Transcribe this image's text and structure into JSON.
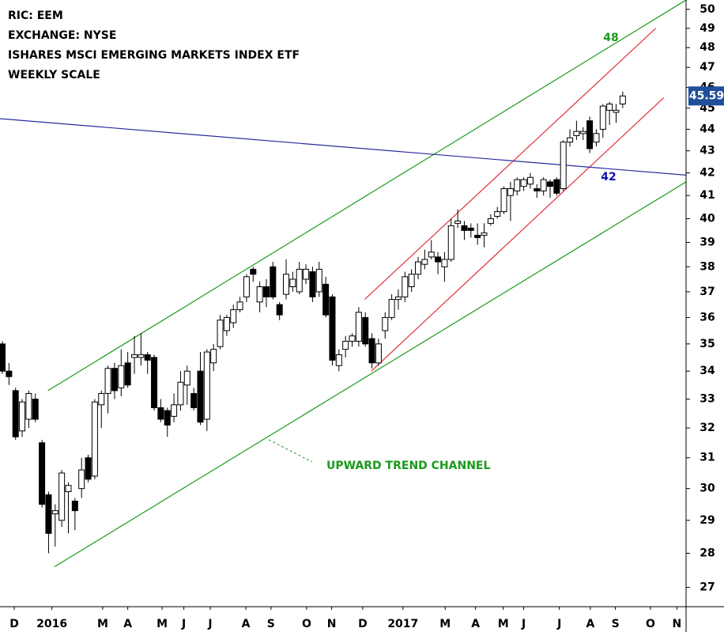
{
  "chart_data": {
    "type": "candlestick",
    "title_lines": [
      "RIC: EEM",
      "EXCHANGE: NYSE",
      "ISHARES MSCI EMERGING MARKETS INDEX ETF",
      "WEEKLY SCALE"
    ],
    "open": [
      35.0,
      34.0,
      33.3,
      31.9,
      32.3,
      33.0,
      31.5,
      29.8,
      29.2,
      29.0,
      29.9,
      29.6,
      30.0,
      31.0,
      30.4,
      32.8,
      33.2,
      34.1,
      33.4,
      34.3,
      34.5,
      34.5,
      34.6,
      34.5,
      32.7,
      32.6,
      32.4,
      32.8,
      33.5,
      33.2,
      34.0,
      32.3,
      34.3,
      34.9,
      35.5,
      35.8,
      36.3,
      36.8,
      37.9,
      36.6,
      37.2,
      38.0,
      36.5,
      36.9,
      37.2,
      37.0,
      37.5,
      37.8,
      37.0,
      37.3,
      36.8,
      34.2,
      34.8,
      35.1,
      35.1,
      36.0,
      35.2,
      34.3,
      35.5,
      36.0,
      36.7,
      36.8,
      37.2,
      37.7,
      38.1,
      38.4,
      38.4,
      38.0,
      38.3,
      39.8,
      39.7,
      39.6,
      39.3,
      39.3,
      39.8,
      40.1,
      40.3,
      41.0,
      41.2,
      41.4,
      41.5,
      41.3,
      41.2,
      41.6,
      41.7,
      41.3,
      43.4,
      43.7,
      43.8,
      44.4,
      43.4,
      44.0,
      44.9,
      44.8,
      45.2
    ],
    "high": [
      35.1,
      34.3,
      33.4,
      33.0,
      33.3,
      33.2,
      31.6,
      29.9,
      29.5,
      30.6,
      30.2,
      29.7,
      31.0,
      31.1,
      33.0,
      33.3,
      34.2,
      34.3,
      34.8,
      34.7,
      35.3,
      35.4,
      34.7,
      34.6,
      33.0,
      32.7,
      33.2,
      34.0,
      34.2,
      33.4,
      34.7,
      34.8,
      35.0,
      36.1,
      36.1,
      36.5,
      36.8,
      37.7,
      38.0,
      37.4,
      37.5,
      38.2,
      36.6,
      38.3,
      37.8,
      38.2,
      38.1,
      38.0,
      38.2,
      37.6,
      36.9,
      34.8,
      35.3,
      35.4,
      36.4,
      36.2,
      35.4,
      35.2,
      36.2,
      36.9,
      37.1,
      37.8,
      37.9,
      38.4,
      38.7,
      39.1,
      38.6,
      38.6,
      40.0,
      40.4,
      39.9,
      39.8,
      39.8,
      39.8,
      40.2,
      40.5,
      41.4,
      41.6,
      41.8,
      41.8,
      42.0,
      41.5,
      41.8,
      41.7,
      41.8,
      43.5,
      44.0,
      44.4,
      44.1,
      44.6,
      44.0,
      45.2,
      45.3,
      45.2,
      45.8
    ],
    "low": [
      33.9,
      33.5,
      31.6,
      31.7,
      32.0,
      32.2,
      29.4,
      28.0,
      28.2,
      28.8,
      28.6,
      28.7,
      29.7,
      30.2,
      30.3,
      32.0,
      32.5,
      33.0,
      33.1,
      33.4,
      33.9,
      34.2,
      33.9,
      32.6,
      32.2,
      31.7,
      32.2,
      32.6,
      32.8,
      32.6,
      32.1,
      31.9,
      34.0,
      34.8,
      35.3,
      35.6,
      36.2,
      36.6,
      37.4,
      36.2,
      36.4,
      36.7,
      35.9,
      36.7,
      37.0,
      36.9,
      37.3,
      36.6,
      36.8,
      36.0,
      34.2,
      34.0,
      34.5,
      34.9,
      34.9,
      34.9,
      34.1,
      34.2,
      35.2,
      35.9,
      36.3,
      36.6,
      37.0,
      37.5,
      37.9,
      38.3,
      37.7,
      37.4,
      38.2,
      39.6,
      39.1,
      39.2,
      38.9,
      38.8,
      39.7,
      40.0,
      40.2,
      39.9,
      41.0,
      41.2,
      41.3,
      40.9,
      41.0,
      40.9,
      41.0,
      41.2,
      43.2,
      43.5,
      43.5,
      42.9,
      43.2,
      43.6,
      44.2,
      44.3,
      45.0
    ],
    "close": [
      34.0,
      33.8,
      31.7,
      32.9,
      33.2,
      32.3,
      29.5,
      28.6,
      29.3,
      30.5,
      30.1,
      29.3,
      30.6,
      30.3,
      32.9,
      33.2,
      34.1,
      33.3,
      34.2,
      33.5,
      34.6,
      34.6,
      34.4,
      32.7,
      32.3,
      32.1,
      32.8,
      33.6,
      34.0,
      32.7,
      32.2,
      34.7,
      34.8,
      35.9,
      36.0,
      36.3,
      36.6,
      37.6,
      37.7,
      37.2,
      36.8,
      36.8,
      36.1,
      37.7,
      37.5,
      37.9,
      37.9,
      36.8,
      37.9,
      36.1,
      34.4,
      34.6,
      35.1,
      35.3,
      36.2,
      35.0,
      34.3,
      35.0,
      36.0,
      36.7,
      36.8,
      37.6,
      37.7,
      38.2,
      38.3,
      38.6,
      38.2,
      38.3,
      39.7,
      39.9,
      39.5,
      39.5,
      39.2,
      39.4,
      40.0,
      40.3,
      41.3,
      41.3,
      41.7,
      41.7,
      41.8,
      41.2,
      41.7,
      41.4,
      41.1,
      43.4,
      43.6,
      43.9,
      43.9,
      43.1,
      43.8,
      45.1,
      45.2,
      44.9,
      45.59
    ],
    "last_price": 45.59,
    "log_scale": true,
    "ylim": [
      26.45,
      50.5
    ],
    "yticks": [
      27,
      28,
      29,
      30,
      31,
      32,
      33,
      34,
      35,
      36,
      37,
      38,
      39,
      40,
      41,
      42,
      43,
      44,
      45,
      46,
      47,
      48,
      49,
      50
    ],
    "xlim": [
      -0.36,
      103.6
    ],
    "xticks": [
      {
        "value": 1.8,
        "label": "D"
      },
      {
        "value": 7.5,
        "label": "2016"
      },
      {
        "value": 15.2,
        "label": "M"
      },
      {
        "value": 19.0,
        "label": "A"
      },
      {
        "value": 24.2,
        "label": "M"
      },
      {
        "value": 27.5,
        "label": "J"
      },
      {
        "value": 31.5,
        "label": "J"
      },
      {
        "value": 36.9,
        "label": "A"
      },
      {
        "value": 40.7,
        "label": "S"
      },
      {
        "value": 46.1,
        "label": "O"
      },
      {
        "value": 49.9,
        "label": "N"
      },
      {
        "value": 54.6,
        "label": "D"
      },
      {
        "value": 60.7,
        "label": "2017"
      },
      {
        "value": 67.1,
        "label": "M"
      },
      {
        "value": 71.7,
        "label": "A"
      },
      {
        "value": 75.9,
        "label": "M"
      },
      {
        "value": 79.0,
        "label": "J"
      },
      {
        "value": 84.4,
        "label": "J"
      },
      {
        "value": 89.1,
        "label": "A"
      },
      {
        "value": 92.9,
        "label": "S"
      },
      {
        "value": 98.2,
        "label": "O"
      },
      {
        "value": 102.2,
        "label": "N"
      }
    ],
    "trend_lines": [
      {
        "color": "#1a9a1a",
        "points": [
          [
            6.9,
            33.3
          ],
          [
            103.6,
            50.5
          ]
        ]
      },
      {
        "color": "#1a9a1a",
        "points": [
          [
            7.9,
            27.6
          ],
          [
            103.6,
            41.6
          ]
        ]
      },
      {
        "color": "#e0303a",
        "points": [
          [
            54.9,
            36.7
          ],
          [
            99.0,
            49.0
          ]
        ]
      },
      {
        "color": "#e0303a",
        "points": [
          [
            55.9,
            34.0
          ],
          [
            100.2,
            45.5
          ]
        ]
      },
      {
        "color": "#2a2aa0",
        "points": [
          [
            -0.36,
            44.5
          ],
          [
            103.6,
            41.9
          ]
        ]
      }
    ],
    "annotations": [
      "48",
      "42",
      "UPWARD TREND CHANNEL"
    ]
  }
}
